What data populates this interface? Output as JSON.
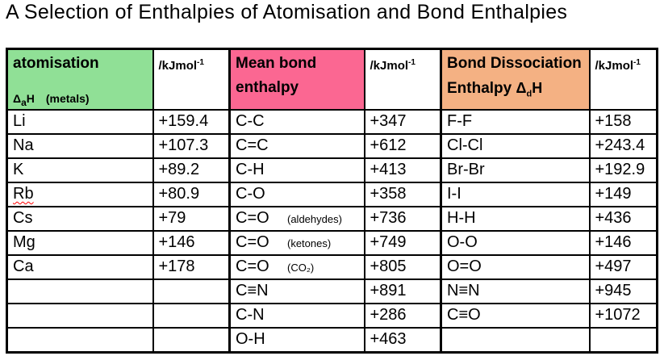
{
  "title": "A Selection of Enthalpies of Atomisation and Bond Enthalpies",
  "unit_label": "/kJmol",
  "unit_exponent": "-1",
  "columns": {
    "atomisation": {
      "title": "atomisation",
      "symbol_delta": "Δ",
      "symbol_sub": "a",
      "symbol_rest": "H",
      "note": "(metals)",
      "bg_color": "#90e096"
    },
    "mean_bond": {
      "line1": "Mean bond",
      "line2": "enthalpy",
      "bg_color": "#fb6792"
    },
    "bond_dissociation": {
      "line1": "Bond Dissociation",
      "line2": "Enthalpy",
      "symbol_delta": "Δ",
      "symbol_sub": "d",
      "symbol_rest": "H",
      "bg_color": "#f4b183"
    }
  },
  "rows": [
    {
      "metal": "Li",
      "metal_misspelled": false,
      "metal_value": "+159.4",
      "bond": "C-C",
      "bond_note": "",
      "bond_value": "+347",
      "molecule": "F-F",
      "molecule_value": "+158"
    },
    {
      "metal": "Na",
      "metal_misspelled": false,
      "metal_value": "+107.3",
      "bond": "C=C",
      "bond_note": "",
      "bond_value": "+612",
      "molecule": "Cl-Cl",
      "molecule_value": "+243.4"
    },
    {
      "metal": "K",
      "metal_misspelled": false,
      "metal_value": "+89.2",
      "bond": "C-H",
      "bond_note": "",
      "bond_value": "+413",
      "molecule": "Br-Br",
      "molecule_value": "+192.9"
    },
    {
      "metal": "Rb",
      "metal_misspelled": true,
      "metal_value": "+80.9",
      "bond": "C-O",
      "bond_note": "",
      "bond_value": "+358",
      "molecule": "I-I",
      "molecule_value": "+149"
    },
    {
      "metal": "Cs",
      "metal_misspelled": false,
      "metal_value": "+79",
      "bond": "C=O",
      "bond_note": "(aldehydes)",
      "bond_value": "+736",
      "molecule": "H-H",
      "molecule_value": "+436"
    },
    {
      "metal": "Mg",
      "metal_misspelled": false,
      "metal_value": "+146",
      "bond": "C=O",
      "bond_note": "(ketones)",
      "bond_value": "+749",
      "molecule": "O-O",
      "molecule_value": "+146"
    },
    {
      "metal": "Ca",
      "metal_misspelled": false,
      "metal_value": "+178",
      "bond": "C=O",
      "bond_note": "(CO₂)",
      "bond_value": "+805",
      "molecule": "O=O",
      "molecule_value": "+497"
    },
    {
      "metal": "",
      "metal_misspelled": false,
      "metal_value": "",
      "bond": "C≡N",
      "bond_note": "",
      "bond_value": "+891",
      "molecule": "N≡N",
      "molecule_value": "+945"
    },
    {
      "metal": "",
      "metal_misspelled": false,
      "metal_value": "",
      "bond": "C-N",
      "bond_note": "",
      "bond_value": "+286",
      "molecule": "C≡O",
      "molecule_value": "+1072"
    },
    {
      "metal": "",
      "metal_misspelled": false,
      "metal_value": "",
      "bond": "O-H",
      "bond_note": "",
      "bond_value": "+463",
      "molecule": "",
      "molecule_value": ""
    }
  ]
}
